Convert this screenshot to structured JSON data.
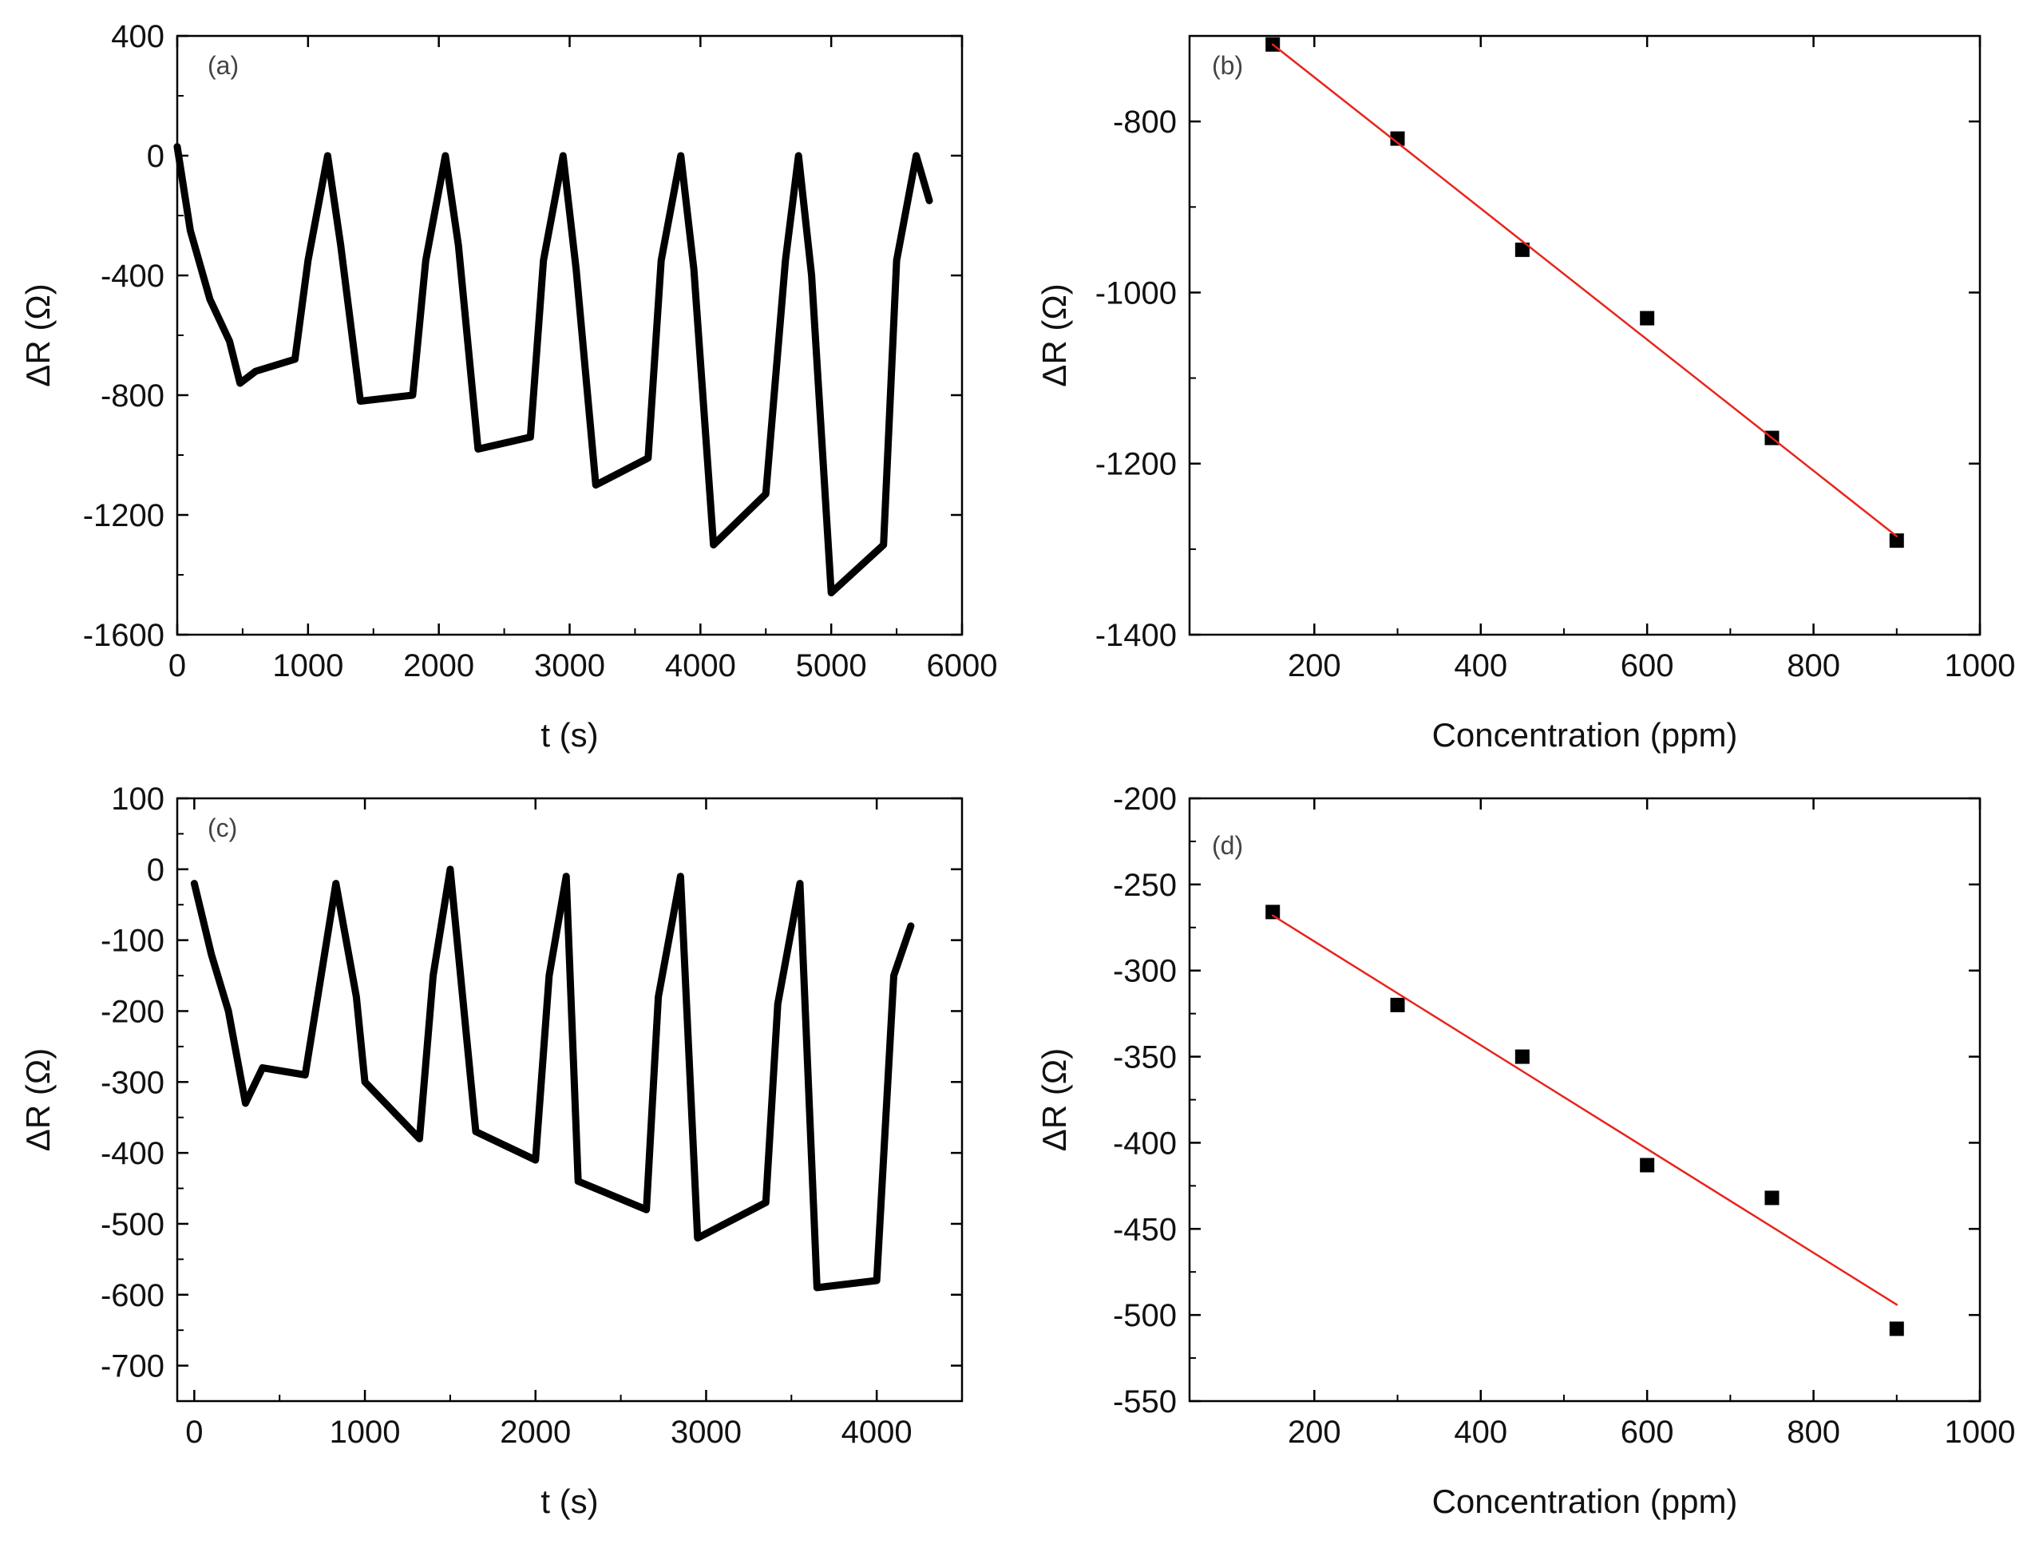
{
  "chart_data": [
    {
      "panel": "(a)",
      "type": "line",
      "xlabel": "t (s)",
      "ylabel": "ΔR (Ω)",
      "xlim": [
        0,
        6000
      ],
      "ylim": [
        -1600,
        400
      ],
      "xticks": [
        0,
        1000,
        2000,
        3000,
        4000,
        5000,
        6000
      ],
      "yticks": [
        -1600,
        -1200,
        -800,
        -400,
        0,
        400
      ],
      "series": [
        {
          "name": "ΔR",
          "color": "#000000",
          "x": [
            0,
            100,
            250,
            400,
            480,
            600,
            900,
            1000,
            1150,
            1250,
            1400,
            1800,
            1900,
            2050,
            2150,
            2300,
            2700,
            2800,
            2950,
            3050,
            3200,
            3600,
            3700,
            3850,
            3950,
            4100,
            4500,
            4650,
            4750,
            4850,
            5000,
            5400,
            5500,
            5650,
            5750
          ],
          "y": [
            30,
            -250,
            -480,
            -620,
            -760,
            -720,
            -680,
            -350,
            0,
            -300,
            -820,
            -800,
            -350,
            0,
            -300,
            -980,
            -940,
            -350,
            0,
            -380,
            -1100,
            -1010,
            -350,
            0,
            -380,
            -1300,
            -1130,
            -350,
            0,
            -400,
            -1460,
            -1300,
            -350,
            0,
            -150
          ]
        }
      ]
    },
    {
      "panel": "(b)",
      "type": "scatter",
      "xlabel": "Concentration (ppm)",
      "ylabel": "ΔR (Ω)",
      "xlim": [
        50,
        1000
      ],
      "ylim": [
        -1400,
        -700
      ],
      "xticks": [
        200,
        400,
        600,
        800,
        1000
      ],
      "yticks": [
        -1400,
        -1200,
        -1000,
        -800
      ],
      "series": [
        {
          "name": "data",
          "color": "#000000",
          "x": [
            150,
            300,
            450,
            600,
            750,
            900
          ],
          "y": [
            -710,
            -820,
            -950,
            -1030,
            -1170,
            -1290
          ]
        },
        {
          "name": "linear fit",
          "type": "line",
          "color": "#e8241c",
          "x": [
            150,
            900
          ],
          "y": [
            -710,
            -1285
          ]
        }
      ]
    },
    {
      "panel": "(c)",
      "type": "line",
      "xlabel": "t (s)",
      "ylabel": "ΔR (Ω)",
      "xlim": [
        -100,
        4500
      ],
      "ylim": [
        -750,
        100
      ],
      "xticks": [
        0,
        1000,
        2000,
        3000,
        4000
      ],
      "yticks": [
        -700,
        -600,
        -500,
        -400,
        -300,
        -200,
        -100,
        0,
        100
      ],
      "series": [
        {
          "name": "ΔR",
          "color": "#000000",
          "x": [
            0,
            100,
            200,
            300,
            400,
            650,
            830,
            950,
            1000,
            1320,
            1400,
            1500,
            1650,
            2000,
            2080,
            2180,
            2250,
            2650,
            2720,
            2850,
            2950,
            3350,
            3420,
            3550,
            3650,
            4000,
            4100,
            4200
          ],
          "y": [
            -20,
            -120,
            -200,
            -330,
            -280,
            -290,
            -20,
            -180,
            -300,
            -380,
            -150,
            0,
            -370,
            -410,
            -150,
            -10,
            -440,
            -480,
            -180,
            -10,
            -520,
            -470,
            -190,
            -20,
            -590,
            -580,
            -150,
            -80
          ]
        }
      ]
    },
    {
      "panel": "(d)",
      "type": "scatter",
      "xlabel": "Concentration (ppm)",
      "ylabel": "ΔR (Ω)",
      "xlim": [
        50,
        1000
      ],
      "ylim": [
        -550,
        -200
      ],
      "xticks": [
        200,
        400,
        600,
        800,
        1000
      ],
      "yticks": [
        -550,
        -500,
        -450,
        -400,
        -350,
        -300,
        -250,
        -200
      ],
      "series": [
        {
          "name": "data",
          "color": "#000000",
          "x": [
            150,
            300,
            450,
            600,
            750,
            900
          ],
          "y": [
            -266,
            -320,
            -350,
            -413,
            -432,
            -508
          ]
        },
        {
          "name": "linear fit",
          "type": "line",
          "color": "#e8241c",
          "x": [
            150,
            900
          ],
          "y": [
            -268,
            -494
          ]
        }
      ]
    }
  ]
}
